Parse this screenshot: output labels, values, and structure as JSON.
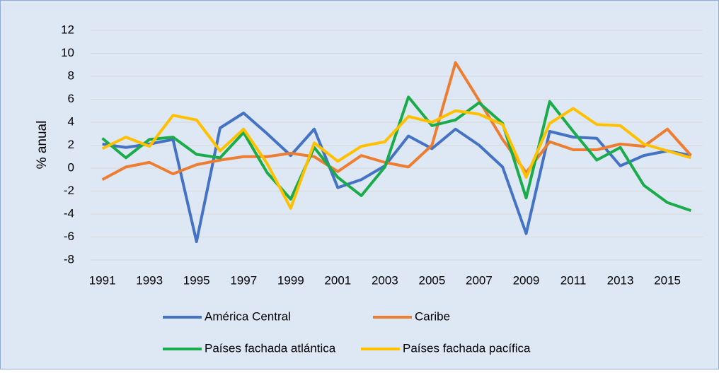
{
  "chart_data": {
    "type": "line",
    "y_label": "% anual",
    "categories": [
      "1991",
      null,
      "1993",
      null,
      "1995",
      null,
      "1997",
      null,
      "1999",
      null,
      "2001",
      null,
      "2003",
      null,
      "2005",
      null,
      "2007",
      null,
      "2009",
      null,
      "2011",
      null,
      "2013",
      null,
      "2015",
      null
    ],
    "series": [
      {
        "name": "América Central",
        "color": "#4472c4",
        "values": [
          2.1,
          1.8,
          2.1,
          2.5,
          -6.4,
          3.5,
          4.8,
          3.0,
          1.1,
          3.4,
          -1.7,
          -1.0,
          0.2,
          2.8,
          1.7,
          3.4,
          2.0,
          0.1,
          -5.7,
          3.2,
          2.7,
          2.6,
          0.2,
          1.1,
          1.5,
          1.1
        ]
      },
      {
        "name": "Caribe",
        "color": "#ed7d31",
        "values": [
          -1.0,
          0.1,
          0.5,
          -0.5,
          0.3,
          0.7,
          1.0,
          1.0,
          1.3,
          1.0,
          -0.3,
          1.1,
          0.5,
          0.1,
          2.0,
          9.2,
          5.9,
          2.5,
          -0.4,
          2.3,
          1.6,
          1.6,
          2.1,
          1.9,
          3.4,
          1.1
        ]
      },
      {
        "name": "Países fachada atlántica",
        "color": "#1aab4a",
        "values": [
          2.6,
          0.9,
          2.5,
          2.7,
          1.2,
          0.9,
          3.1,
          -0.4,
          -2.7,
          1.8,
          -0.8,
          -2.4,
          0.1,
          6.2,
          3.7,
          4.2,
          5.7,
          3.9,
          -2.6,
          5.8,
          3.2,
          0.7,
          1.8,
          -1.5,
          -3.0,
          -3.7
        ]
      },
      {
        "name": "Países fachada pacífica",
        "color": "#ffc000",
        "values": [
          1.7,
          2.7,
          1.9,
          4.6,
          4.2,
          1.5,
          3.4,
          0.4,
          -3.5,
          2.2,
          0.6,
          1.9,
          2.3,
          4.5,
          4.0,
          5.0,
          4.7,
          3.8,
          -0.8,
          3.9,
          5.2,
          3.8,
          3.7,
          2.1,
          1.5,
          0.9
        ]
      }
    ],
    "ylim": [
      -8,
      12
    ],
    "yticks": [
      -8,
      -6,
      -4,
      -2,
      0,
      2,
      4,
      6,
      8,
      10,
      12
    ],
    "grid": true,
    "legend": "bottom"
  }
}
